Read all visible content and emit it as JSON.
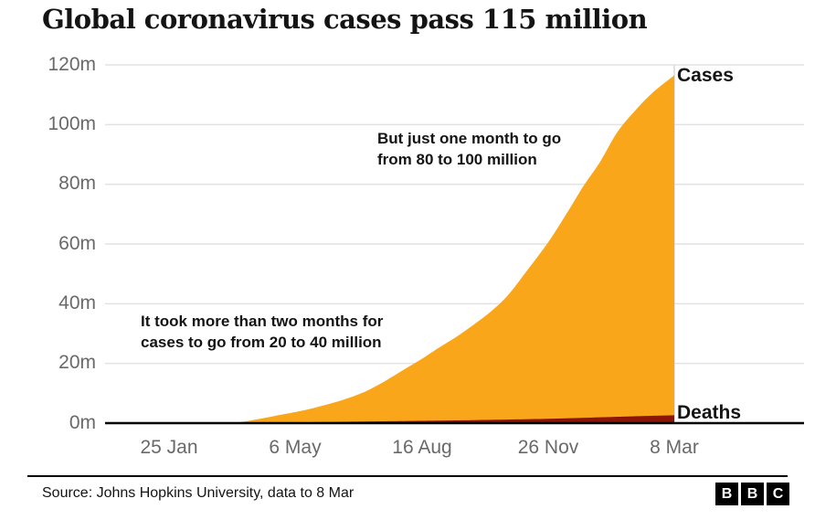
{
  "title": "Global coronavirus cases pass 115 million",
  "chart_data": {
    "type": "area",
    "title": "Global coronavirus cases pass 115 million",
    "x_unit": "days since 22 Jan 2020",
    "x_domain": [
      0,
      411
    ],
    "ylim": [
      0,
      120
    ],
    "grid": "horizontal",
    "y_ticks": [
      0,
      20,
      40,
      60,
      80,
      100,
      120
    ],
    "y_tick_labels": [
      "0m",
      "20m",
      "40m",
      "60m",
      "80m",
      "100m",
      "120m"
    ],
    "x_ticks": [
      3,
      105,
      207,
      309,
      411
    ],
    "x_tick_labels": [
      "25 Jan",
      "6 May",
      "16 Aug",
      "26 Nov",
      "8 Mar"
    ],
    "series": [
      {
        "name": "Cases",
        "color": "#FAA61A",
        "x": [
          0,
          32,
          46,
          60,
          74,
          88,
          105,
          119,
          133,
          147,
          161,
          175,
          189,
          207,
          221,
          235,
          249,
          263,
          277,
          291,
          309,
          323,
          337,
          351,
          365,
          379,
          393,
          411
        ],
        "values": [
          0,
          0.08,
          0.11,
          0.34,
          1.27,
          2.4,
          3.7,
          5.0,
          6.5,
          8.3,
          10.5,
          13.5,
          17.0,
          21.5,
          25.3,
          28.9,
          33.0,
          37.4,
          43.0,
          50.5,
          60.5,
          69.5,
          79.0,
          87.5,
          97.5,
          104.5,
          110.5,
          116.5
        ]
      },
      {
        "name": "Deaths",
        "color": "#8B1507",
        "x": [
          0,
          60,
          105,
          147,
          207,
          249,
          309,
          351,
          379,
          411
        ],
        "values": [
          0,
          0.02,
          0.26,
          0.45,
          0.78,
          1.0,
          1.45,
          1.95,
          2.3,
          2.62
        ]
      }
    ],
    "annotations": [
      {
        "text": "But just one month to go\nfrom 80 to 100 million"
      },
      {
        "text": "It took more than two months for\ncases to go from 20 to 40 million"
      }
    ]
  },
  "footer": {
    "source": "Source: Johns Hopkins University, data to 8 Mar",
    "logo_letters": [
      "B",
      "B",
      "C"
    ]
  }
}
